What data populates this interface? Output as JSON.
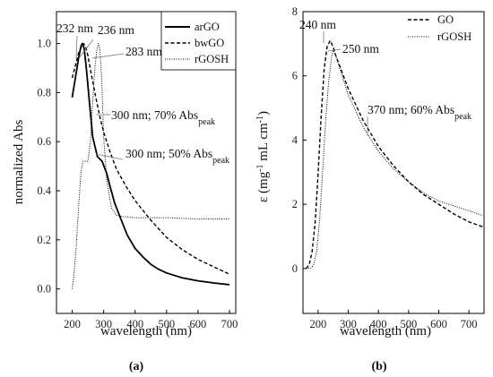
{
  "chart_data": [
    {
      "type": "line",
      "panel": "(a)",
      "xlabel": "wavelength (nm)",
      "ylabel": "normalized Abs",
      "xlim": [
        150,
        720
      ],
      "ylim": [
        -0.1,
        1.13
      ],
      "xticks": [
        200,
        300,
        400,
        500,
        600,
        700
      ],
      "yticks": [
        0.0,
        0.2,
        0.4,
        0.6,
        0.8,
        1.0
      ],
      "ytick_labels": [
        "0.0",
        "0.2",
        "0.4",
        "0.6",
        "0.8",
        "1.0"
      ],
      "legend_position": "top-right",
      "series": [
        {
          "name": "arGO",
          "style": "solid",
          "x": [
            200,
            210,
            220,
            228,
            232,
            238,
            245,
            255,
            265,
            280,
            295,
            310,
            320,
            335,
            350,
            375,
            400,
            425,
            450,
            475,
            500,
            550,
            600,
            650,
            700
          ],
          "y": [
            0.78,
            0.86,
            0.94,
            0.99,
            1.0,
            0.98,
            0.9,
            0.76,
            0.62,
            0.54,
            0.52,
            0.47,
            0.42,
            0.35,
            0.3,
            0.22,
            0.165,
            0.13,
            0.1,
            0.08,
            0.065,
            0.045,
            0.033,
            0.024,
            0.017
          ]
        },
        {
          "name": "bwGO",
          "style": "dashed",
          "x": [
            200,
            210,
            220,
            230,
            236,
            242,
            250,
            260,
            275,
            290,
            300,
            320,
            340,
            370,
            400,
            450,
            500,
            550,
            600,
            650,
            700
          ],
          "y": [
            0.86,
            0.91,
            0.96,
            0.99,
            1.0,
            0.99,
            0.95,
            0.88,
            0.78,
            0.69,
            0.64,
            0.56,
            0.49,
            0.42,
            0.36,
            0.28,
            0.21,
            0.16,
            0.12,
            0.09,
            0.06
          ]
        },
        {
          "name": "rGOSH",
          "style": "dotted",
          "x": [
            200,
            205,
            212,
            220,
            228,
            235,
            242,
            250,
            258,
            265,
            272,
            278,
            283,
            288,
            294,
            300,
            310,
            325,
            340,
            360,
            400,
            450,
            500,
            600,
            700
          ],
          "y": [
            0.0,
            0.05,
            0.16,
            0.33,
            0.48,
            0.52,
            0.52,
            0.52,
            0.6,
            0.76,
            0.9,
            0.97,
            1.0,
            0.98,
            0.85,
            0.62,
            0.44,
            0.33,
            0.3,
            0.295,
            0.29,
            0.29,
            0.29,
            0.285,
            0.285
          ]
        }
      ],
      "annotations": [
        {
          "text": "232 nm"
        },
        {
          "text": "236 nm"
        },
        {
          "text": "283 nm"
        },
        {
          "text": "300 nm; 70% Abs",
          "subscript": "peak"
        },
        {
          "text": "300 nm; 50% Abs",
          "subscript": "peak"
        }
      ]
    },
    {
      "type": "line",
      "panel": "(b)",
      "xlabel": "wavelength (nm)",
      "ylabel": "ε (mg⁻¹ mL cm⁻¹)",
      "xlim": [
        150,
        750
      ],
      "ylim": [
        -1.4,
        8
      ],
      "xticks": [
        200,
        300,
        400,
        500,
        600,
        700
      ],
      "yticks": [
        0,
        2,
        4,
        6,
        8
      ],
      "ytick_labels": [
        "0",
        "2",
        "4",
        "6",
        "8"
      ],
      "legend_position": "top-right",
      "series": [
        {
          "name": "GO",
          "style": "dashed",
          "x": [
            160,
            170,
            180,
            190,
            200,
            210,
            220,
            230,
            240,
            250,
            260,
            280,
            300,
            350,
            400,
            450,
            500,
            550,
            600,
            650,
            700,
            745
          ],
          "y": [
            0.0,
            0.1,
            0.5,
            1.4,
            2.9,
            4.7,
            6.2,
            6.9,
            7.1,
            6.9,
            6.6,
            6.1,
            5.6,
            4.6,
            3.8,
            3.2,
            2.7,
            2.3,
            2.0,
            1.7,
            1.45,
            1.3
          ]
        },
        {
          "name": "rGOSH",
          "style": "dotted",
          "x": [
            160,
            175,
            185,
            195,
            205,
            215,
            225,
            235,
            245,
            250,
            260,
            280,
            300,
            350,
            400,
            450,
            500,
            550,
            600,
            650,
            700,
            745
          ],
          "y": [
            0.0,
            0.0,
            0.1,
            0.5,
            1.5,
            3.0,
            4.6,
            5.8,
            6.6,
            6.8,
            6.6,
            6.0,
            5.4,
            4.4,
            3.65,
            3.1,
            2.7,
            2.35,
            2.1,
            1.95,
            1.8,
            1.65
          ]
        }
      ],
      "annotations": [
        {
          "text": "240 nm"
        },
        {
          "text": "250 nm"
        },
        {
          "text": "370 nm; 60% Abs",
          "subscript": "peak"
        }
      ]
    }
  ]
}
